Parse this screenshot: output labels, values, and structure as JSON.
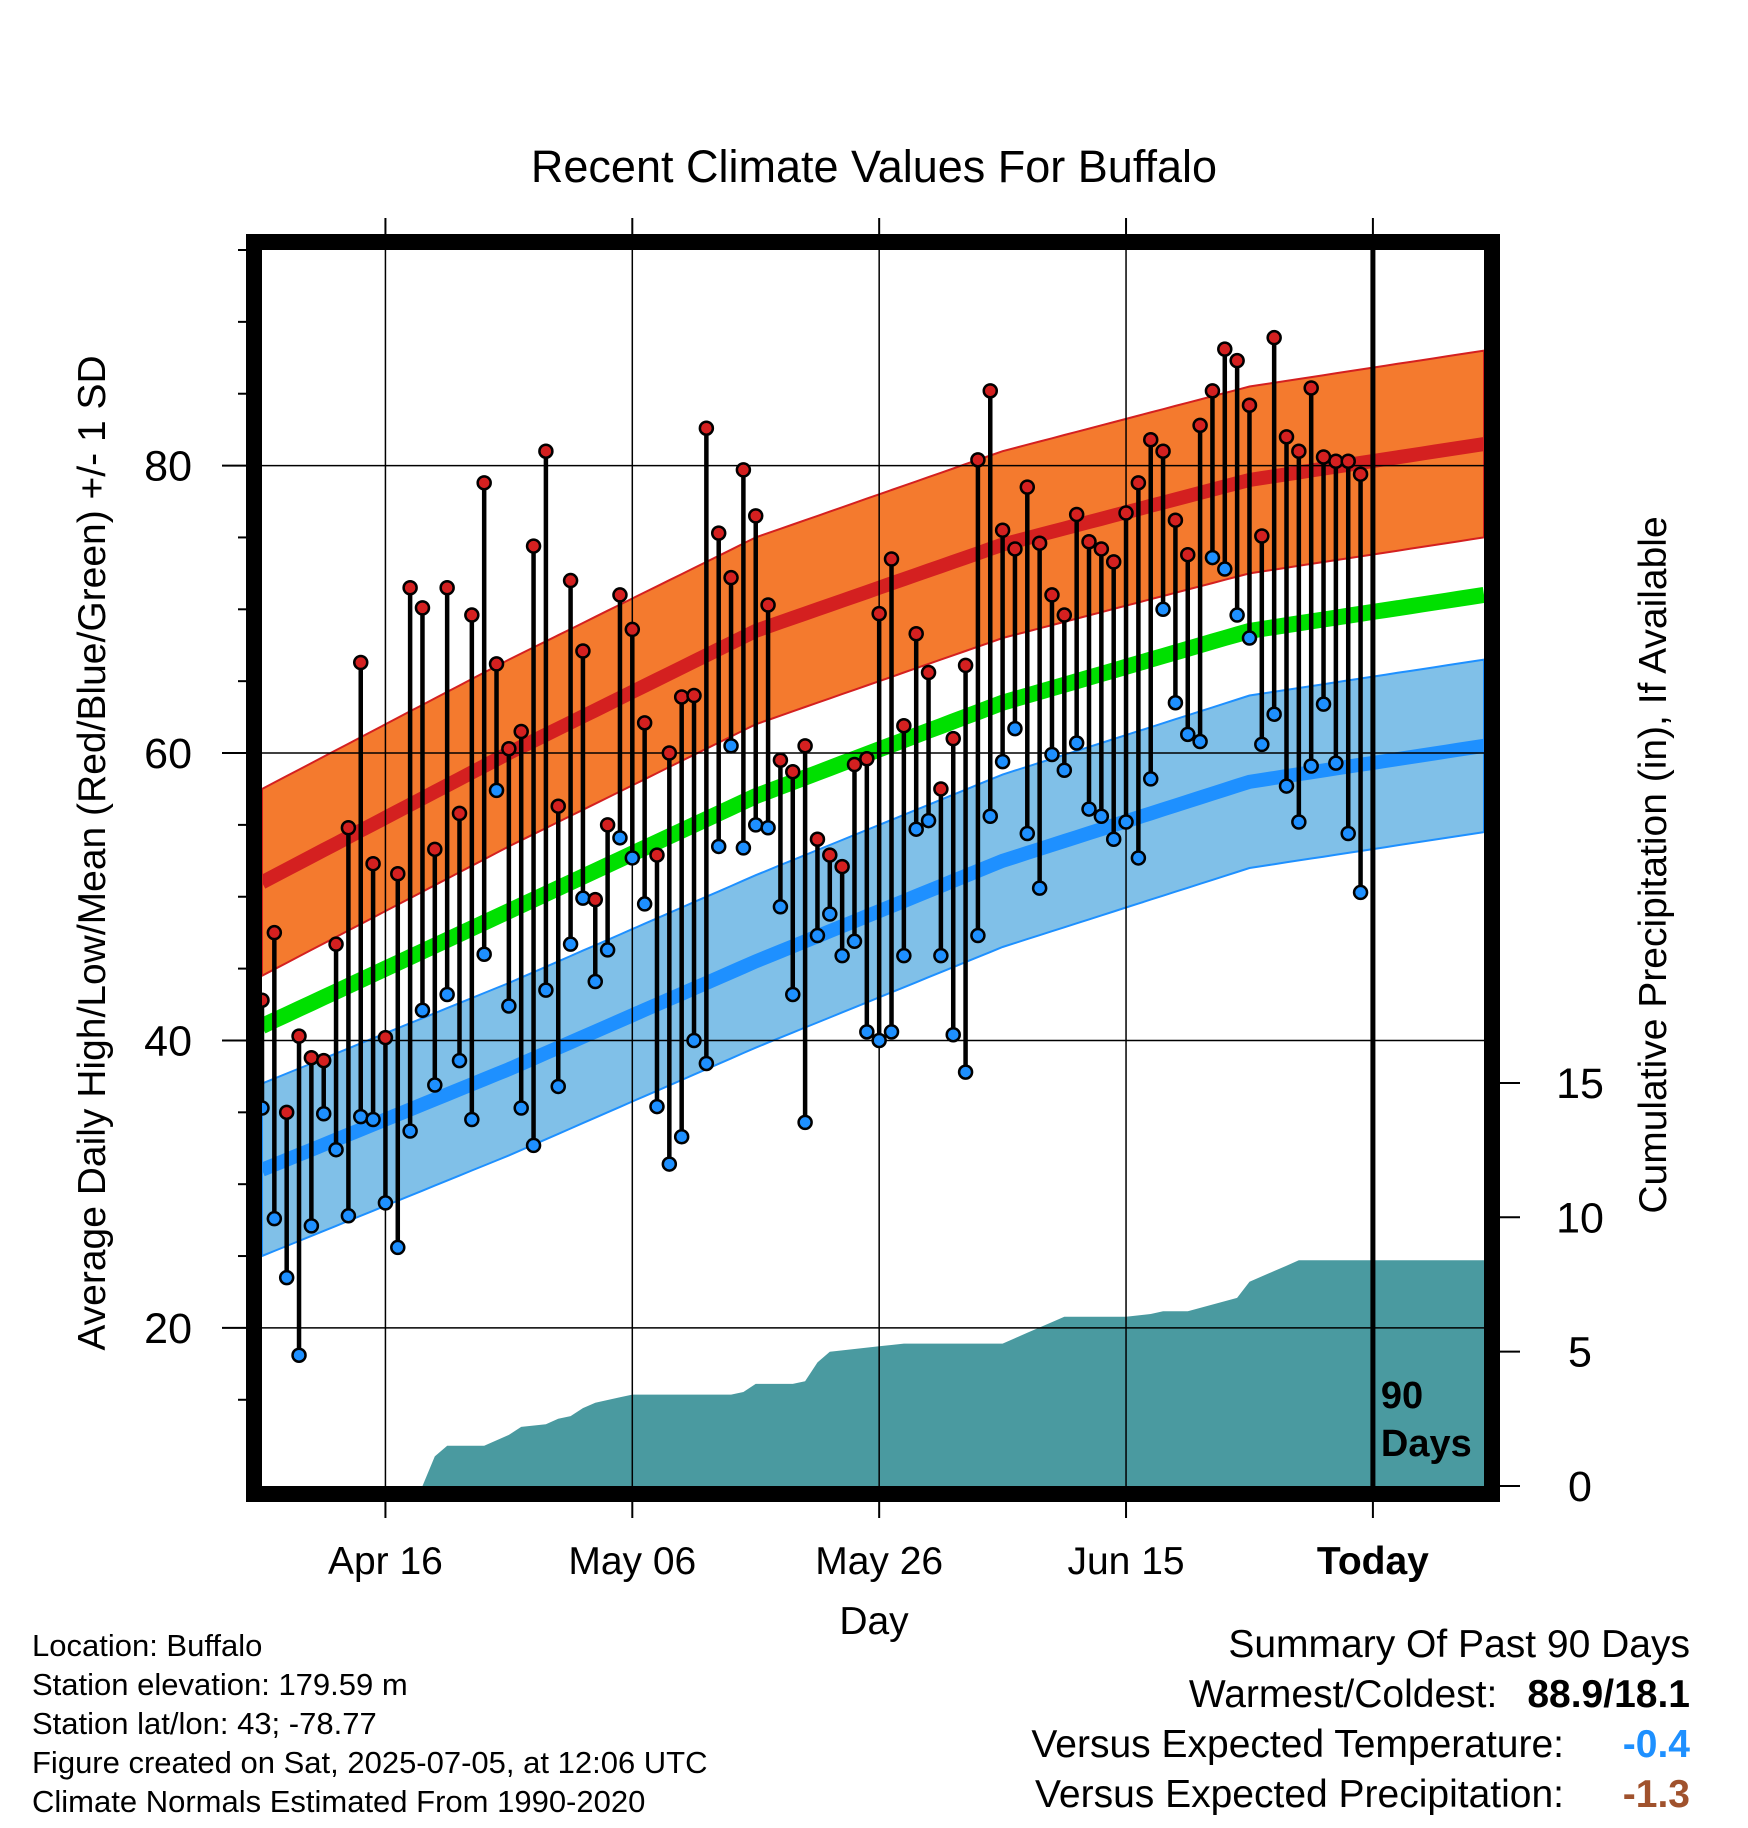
{
  "chart_data": {
    "type": "line",
    "title": "Recent Climate Values For Buffalo",
    "xlabel": "Day",
    "ylabel": "Average Daily High/Low/Mean (Red/Blue/Green) +/- 1 SD",
    "y2label": "Cumulative Precipitation (in), If Available",
    "x_ticks": [
      "Apr 16",
      "May 06",
      "May 26",
      "Jun 15",
      "Today"
    ],
    "y_ticks": [
      20,
      40,
      60,
      80
    ],
    "y2_ticks": [
      0,
      5,
      10,
      15
    ],
    "ylim": [
      9,
      95
    ],
    "y2lim": [
      0,
      46
    ],
    "xlim": [
      "Apr 06",
      "Jul 14"
    ],
    "grid": true,
    "today_marker": "Jul 05",
    "marker_label": [
      "90",
      "Days"
    ],
    "colors": {
      "high": "#d42020",
      "high_band": "#f47a2e",
      "low": "#1e90ff",
      "low_band": "#80c0e8",
      "mean": "#00e000",
      "precip": "#4a9aa0",
      "frame": "#000000"
    },
    "normals": {
      "dates": [
        "Apr 06",
        "Apr 26",
        "May 16",
        "Jun 05",
        "Jun 25",
        "Jul 14"
      ],
      "high": [
        51,
        60,
        68.5,
        74.5,
        79,
        81.5
      ],
      "high_sd": 6.5,
      "low": [
        31,
        38,
        45.5,
        52.5,
        58,
        60.5
      ],
      "low_sd": 6,
      "mean": [
        41,
        49,
        57,
        63.5,
        68.5,
        71
      ]
    },
    "series": [
      {
        "name": "High",
        "x": [
          "Apr 06",
          "Apr 07",
          "Apr 08",
          "Apr 09",
          "Apr 10",
          "Apr 11",
          "Apr 12",
          "Apr 13",
          "Apr 14",
          "Apr 15",
          "Apr 16",
          "Apr 17",
          "Apr 18",
          "Apr 19",
          "Apr 20",
          "Apr 21",
          "Apr 22",
          "Apr 23",
          "Apr 24",
          "Apr 25",
          "Apr 26",
          "Apr 27",
          "Apr 28",
          "Apr 29",
          "Apr 30",
          "May 01",
          "May 02",
          "May 03",
          "May 04",
          "May 05",
          "May 06",
          "May 07",
          "May 08",
          "May 09",
          "May 10",
          "May 11",
          "May 12",
          "May 13",
          "May 14",
          "May 15",
          "May 16",
          "May 17",
          "May 18",
          "May 19",
          "May 20",
          "May 21",
          "May 22",
          "May 23",
          "May 24",
          "May 25",
          "May 26",
          "May 27",
          "May 28",
          "May 29",
          "May 30",
          "May 31",
          "Jun 01",
          "Jun 02",
          "Jun 03",
          "Jun 04",
          "Jun 05",
          "Jun 06",
          "Jun 07",
          "Jun 08",
          "Jun 09",
          "Jun 10",
          "Jun 11",
          "Jun 12",
          "Jun 13",
          "Jun 14",
          "Jun 15",
          "Jun 16",
          "Jun 17",
          "Jun 18",
          "Jun 19",
          "Jun 20",
          "Jun 21",
          "Jun 22",
          "Jun 23",
          "Jun 24",
          "Jun 25",
          "Jun 26",
          "Jun 27",
          "Jun 28",
          "Jun 29",
          "Jun 30",
          "Jul 01",
          "Jul 02",
          "Jul 03",
          "Jul 04"
        ],
        "values": [
          42.8,
          47.5,
          35,
          40.3,
          38.8,
          38.6,
          46.7,
          54.8,
          66.3,
          52.3,
          40.2,
          51.6,
          71.5,
          70.1,
          53.3,
          71.5,
          55.8,
          69.6,
          78.8,
          66.2,
          60.3,
          61.5,
          74.4,
          81,
          56.3,
          72,
          67.1,
          49.8,
          55,
          71,
          68.6,
          62.1,
          52.9,
          60,
          63.9,
          64,
          82.6,
          75.3,
          72.2,
          79.7,
          76.5,
          70.3,
          59.5,
          58.7,
          60.5,
          54,
          52.9,
          52.1,
          59.2,
          59.6,
          69.7,
          73.5,
          61.9,
          68.3,
          65.6,
          57.5,
          61,
          66.1,
          80.4,
          85.2,
          75.5,
          74.2,
          78.5,
          74.6,
          71,
          69.6,
          76.6,
          74.7,
          74.2,
          73.3,
          76.7,
          78.8,
          81.8,
          81,
          76.2,
          73.8,
          82.8,
          85.2,
          88.1,
          87.3,
          84.2,
          75.1,
          88.9,
          82,
          81,
          85.4,
          80.6,
          80.3,
          80.3,
          79.4
        ]
      },
      {
        "name": "Low",
        "x": [
          "Apr 06",
          "Apr 07",
          "Apr 08",
          "Apr 09",
          "Apr 10",
          "Apr 11",
          "Apr 12",
          "Apr 13",
          "Apr 14",
          "Apr 15",
          "Apr 16",
          "Apr 17",
          "Apr 18",
          "Apr 19",
          "Apr 20",
          "Apr 21",
          "Apr 22",
          "Apr 23",
          "Apr 24",
          "Apr 25",
          "Apr 26",
          "Apr 27",
          "Apr 28",
          "Apr 29",
          "Apr 30",
          "May 01",
          "May 02",
          "May 03",
          "May 04",
          "May 05",
          "May 06",
          "May 07",
          "May 08",
          "May 09",
          "May 10",
          "May 11",
          "May 12",
          "May 13",
          "May 14",
          "May 15",
          "May 16",
          "May 17",
          "May 18",
          "May 19",
          "May 20",
          "May 21",
          "May 22",
          "May 23",
          "May 24",
          "May 25",
          "May 26",
          "May 27",
          "May 28",
          "May 29",
          "May 30",
          "May 31",
          "Jun 01",
          "Jun 02",
          "Jun 03",
          "Jun 04",
          "Jun 05",
          "Jun 06",
          "Jun 07",
          "Jun 08",
          "Jun 09",
          "Jun 10",
          "Jun 11",
          "Jun 12",
          "Jun 13",
          "Jun 14",
          "Jun 15",
          "Jun 16",
          "Jun 17",
          "Jun 18",
          "Jun 19",
          "Jun 20",
          "Jun 21",
          "Jun 22",
          "Jun 23",
          "Jun 24",
          "Jun 25",
          "Jun 26",
          "Jun 27",
          "Jun 28",
          "Jun 29",
          "Jun 30",
          "Jul 01",
          "Jul 02",
          "Jul 03",
          "Jul 04"
        ],
        "values": [
          35.3,
          27.6,
          23.5,
          18.1,
          27.1,
          34.9,
          32.4,
          27.8,
          34.7,
          34.5,
          28.7,
          25.6,
          33.7,
          42.1,
          36.9,
          43.2,
          38.6,
          34.5,
          46,
          57.4,
          42.4,
          35.3,
          32.7,
          43.5,
          36.8,
          46.7,
          49.9,
          44.1,
          46.3,
          54.1,
          52.7,
          49.5,
          35.4,
          31.4,
          33.3,
          40,
          38.4,
          53.5,
          60.5,
          53.4,
          55,
          54.8,
          49.3,
          43.2,
          34.3,
          47.3,
          48.8,
          45.9,
          46.9,
          40.6,
          40,
          40.6,
          45.9,
          54.7,
          55.3,
          45.9,
          40.4,
          37.8,
          47.3,
          55.6,
          59.4,
          61.7,
          54.4,
          50.6,
          59.9,
          58.8,
          60.7,
          56.1,
          55.6,
          54,
          55.2,
          52.7,
          58.2,
          70,
          63.5,
          61.3,
          60.8,
          73.6,
          72.8,
          69.6,
          68,
          60.6,
          62.7,
          57.7,
          55.2,
          59.1,
          63.4,
          59.3,
          54.4,
          50.3
        ]
      }
    ],
    "precip": {
      "dates": [
        "Apr 06",
        "Apr 19",
        "Apr 20",
        "Apr 21",
        "Apr 24",
        "Apr 26",
        "Apr 27",
        "Apr 29",
        "Apr 30",
        "May 01",
        "May 02",
        "May 03",
        "May 04",
        "May 05",
        "May 06",
        "May 14",
        "May 15",
        "May 16",
        "May 19",
        "May 20",
        "May 21",
        "May 22",
        "May 24",
        "May 26",
        "May 28",
        "Jun 05",
        "Jun 06",
        "Jun 07",
        "Jun 09",
        "Jun 10",
        "Jun 12",
        "Jun 15",
        "Jun 17",
        "Jun 18",
        "Jun 19",
        "Jun 20",
        "Jun 24",
        "Jun 25",
        "Jun 26",
        "Jun 27",
        "Jun 28",
        "Jun 29",
        "Jul 14"
      ],
      "values": [
        0,
        0,
        1.1,
        1.5,
        1.5,
        1.9,
        2.2,
        2.3,
        2.5,
        2.6,
        2.9,
        3.1,
        3.2,
        3.3,
        3.4,
        3.4,
        3.5,
        3.8,
        3.8,
        3.9,
        4.6,
        5,
        5.1,
        5.2,
        5.3,
        5.3,
        5.5,
        5.7,
        6.1,
        6.3,
        6.3,
        6.3,
        6.4,
        6.5,
        6.5,
        6.5,
        7,
        7.6,
        7.8,
        8,
        8.2,
        8.4,
        8.4
      ]
    }
  },
  "info": {
    "location": "Location: Buffalo",
    "elevation": "Station elevation: 179.59 m",
    "latlon": "Station lat/lon: 43; -78.77",
    "created": "Figure created on Sat, 2025-07-05, at 12:06 UTC",
    "normals": "Climate Normals Estimated From 1990-2020"
  },
  "summary": {
    "title": "Summary Of Past 90 Days",
    "warmest_label": "Warmest/Coldest:",
    "warmest_value": "88.9/18.1",
    "temp_label": "Versus Expected Temperature:",
    "temp_value": "-0.4",
    "temp_color": "#1e90ff",
    "precip_label": "Versus Expected Precipitation:",
    "precip_value": "-1.3",
    "precip_color": "#a0522d"
  }
}
